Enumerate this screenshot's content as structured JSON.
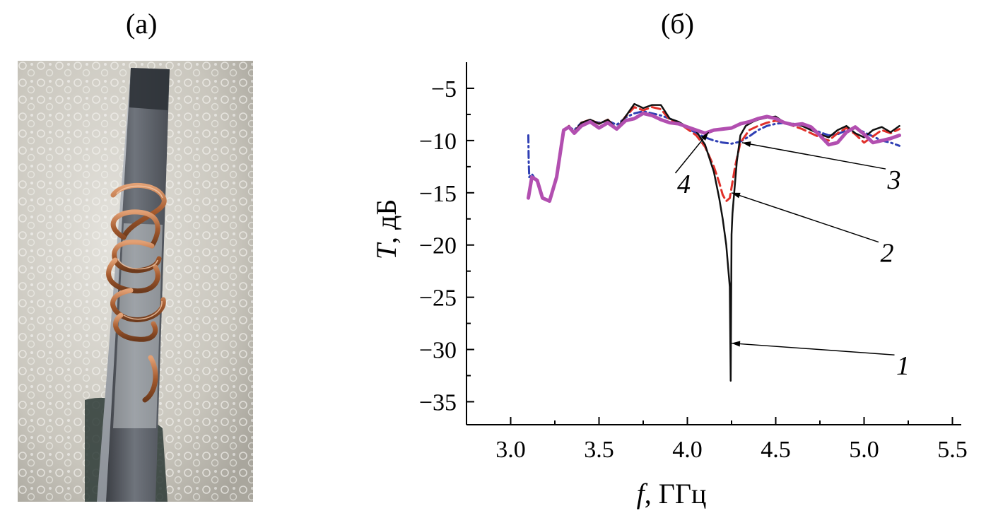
{
  "figure": {
    "panel_a_label": "(а)",
    "panel_b_label": "(б)",
    "photo_subject": "ferrite bar with copper coil photograph"
  },
  "colors": {
    "curve1": "#111111",
    "curve2": "#e0302a",
    "curve3": "#2f3fb4",
    "curve4": "#b24fb0"
  },
  "chart_data": {
    "type": "line",
    "title": "",
    "xlabel_italic": "f",
    "xlabel_rest": ", ГГц",
    "ylabel_italic": "T",
    "ylabel_rest": ", дБ",
    "xlim": [
      2.75,
      5.55
    ],
    "ylim": [
      -37.2,
      -2.5
    ],
    "xticks": [
      3.0,
      3.5,
      4.0,
      4.5,
      5.0,
      5.5
    ],
    "xtick_labels": [
      "3.0",
      "3.5",
      "4.0",
      "4.5",
      "5.0",
      "5.5"
    ],
    "yticks": [
      -5,
      -10,
      -15,
      -20,
      -25,
      -30,
      -35
    ],
    "ytick_labels": [
      "−5",
      "−10",
      "−15",
      "−20",
      "−25",
      "−30",
      "−35"
    ],
    "series": [
      {
        "name": "1",
        "style": "solid",
        "x": [
          3.1,
          3.12,
          3.15,
          3.18,
          3.22,
          3.26,
          3.3,
          3.33,
          3.36,
          3.4,
          3.45,
          3.5,
          3.55,
          3.6,
          3.65,
          3.7,
          3.75,
          3.8,
          3.85,
          3.9,
          3.95,
          4.0,
          4.05,
          4.1,
          4.15,
          4.18,
          4.2,
          4.22,
          4.23,
          4.24,
          4.245,
          4.25,
          4.255,
          4.26,
          4.28,
          4.3,
          4.33,
          4.37,
          4.4,
          4.45,
          4.5,
          4.55,
          4.6,
          4.65,
          4.7,
          4.75,
          4.8,
          4.85,
          4.9,
          4.95,
          5.0,
          5.05,
          5.1,
          5.15,
          5.2
        ],
        "y": [
          -15.5,
          -13.5,
          -13.8,
          -15.5,
          -15.8,
          -13.5,
          -9.0,
          -8.6,
          -9.2,
          -8.3,
          -8.0,
          -8.4,
          -8.0,
          -8.9,
          -7.7,
          -6.5,
          -6.9,
          -6.6,
          -6.6,
          -7.9,
          -8.2,
          -8.7,
          -9.1,
          -10.4,
          -13.0,
          -15.5,
          -17.5,
          -20.0,
          -22.0,
          -24.0,
          -33.0,
          -19.0,
          -17.0,
          -16.0,
          -12.0,
          -9.5,
          -8.6,
          -8.2,
          -8.0,
          -7.8,
          -7.7,
          -8.3,
          -8.4,
          -8.6,
          -9.0,
          -9.4,
          -9.7,
          -9.0,
          -8.6,
          -9.3,
          -9.7,
          -9.0,
          -8.7,
          -9.2,
          -8.6
        ]
      },
      {
        "name": "2",
        "style": "dashed",
        "x": [
          3.1,
          3.12,
          3.15,
          3.18,
          3.22,
          3.26,
          3.3,
          3.33,
          3.36,
          3.4,
          3.45,
          3.5,
          3.55,
          3.6,
          3.65,
          3.7,
          3.75,
          3.8,
          3.85,
          3.9,
          3.95,
          4.0,
          4.05,
          4.1,
          4.15,
          4.18,
          4.2,
          4.22,
          4.24,
          4.25,
          4.27,
          4.3,
          4.35,
          4.4,
          4.45,
          4.5,
          4.55,
          4.6,
          4.65,
          4.7,
          4.75,
          4.8,
          4.85,
          4.9,
          4.95,
          5.0,
          5.05,
          5.1,
          5.15,
          5.2
        ],
        "y": [
          -15.5,
          -13.5,
          -13.8,
          -15.5,
          -15.8,
          -13.5,
          -9.0,
          -8.6,
          -9.2,
          -8.3,
          -8.0,
          -8.4,
          -8.0,
          -8.9,
          -7.7,
          -6.8,
          -7.1,
          -6.8,
          -7.0,
          -8.0,
          -8.3,
          -8.9,
          -9.5,
          -10.6,
          -12.5,
          -14.0,
          -15.2,
          -15.8,
          -15.5,
          -14.5,
          -12.5,
          -10.2,
          -9.0,
          -8.6,
          -8.3,
          -8.1,
          -8.3,
          -8.6,
          -8.9,
          -9.3,
          -9.7,
          -10.0,
          -9.3,
          -8.8,
          -9.4,
          -10.2,
          -9.6,
          -9.0,
          -9.3,
          -8.9
        ]
      },
      {
        "name": "3",
        "style": "dashdot",
        "x": [
          3.1,
          3.102,
          3.105,
          3.12,
          3.15,
          3.18,
          3.22,
          3.26,
          3.3,
          3.33,
          3.36,
          3.4,
          3.45,
          3.5,
          3.55,
          3.6,
          3.65,
          3.7,
          3.75,
          3.8,
          3.85,
          3.9,
          3.95,
          4.0,
          4.05,
          4.1,
          4.15,
          4.2,
          4.25,
          4.3,
          4.35,
          4.4,
          4.45,
          4.5,
          4.55,
          4.6,
          4.65,
          4.7,
          4.75,
          4.8,
          4.85,
          4.9,
          4.95,
          5.0,
          5.05,
          5.1,
          5.15,
          5.2
        ],
        "y": [
          -9.5,
          -12.0,
          -13.5,
          -13.2,
          -14.0,
          -15.5,
          -15.8,
          -13.5,
          -9.0,
          -8.7,
          -9.0,
          -8.3,
          -8.1,
          -8.3,
          -8.1,
          -8.5,
          -7.8,
          -7.4,
          -7.2,
          -7.4,
          -7.6,
          -7.9,
          -8.3,
          -8.8,
          -9.3,
          -9.7,
          -10.0,
          -10.2,
          -10.3,
          -10.1,
          -9.6,
          -9.0,
          -8.6,
          -8.4,
          -8.3,
          -8.4,
          -8.6,
          -8.9,
          -9.2,
          -9.5,
          -9.4,
          -9.0,
          -8.8,
          -9.2,
          -9.6,
          -10.0,
          -10.2,
          -10.5
        ]
      },
      {
        "name": "4",
        "style": "solid-thick",
        "x": [
          3.1,
          3.12,
          3.15,
          3.18,
          3.22,
          3.26,
          3.3,
          3.33,
          3.36,
          3.4,
          3.45,
          3.5,
          3.55,
          3.6,
          3.65,
          3.7,
          3.75,
          3.8,
          3.85,
          3.9,
          3.95,
          4.0,
          4.05,
          4.1,
          4.15,
          4.2,
          4.25,
          4.3,
          4.35,
          4.4,
          4.45,
          4.5,
          4.55,
          4.6,
          4.65,
          4.7,
          4.75,
          4.8,
          4.85,
          4.9,
          4.95,
          5.0,
          5.05,
          5.1,
          5.15,
          5.2
        ],
        "y": [
          -15.5,
          -13.5,
          -13.8,
          -15.5,
          -15.8,
          -13.5,
          -9.0,
          -8.7,
          -9.3,
          -8.6,
          -8.2,
          -8.8,
          -8.3,
          -8.9,
          -8.1,
          -7.9,
          -7.4,
          -7.6,
          -8.0,
          -8.3,
          -8.4,
          -8.7,
          -9.0,
          -9.3,
          -9.0,
          -8.9,
          -8.8,
          -8.4,
          -8.2,
          -7.9,
          -7.7,
          -7.9,
          -8.3,
          -8.5,
          -8.4,
          -8.7,
          -9.5,
          -10.4,
          -10.2,
          -9.2,
          -8.7,
          -9.4,
          -10.2,
          -10.0,
          -9.8,
          -9.5
        ]
      }
    ],
    "annotations": [
      {
        "text": "1",
        "tx": 5.22,
        "ty": -31.6,
        "ax": 4.25,
        "ay": -29.4
      },
      {
        "text": "2",
        "tx": 5.13,
        "ty": -20.8,
        "ax": 4.25,
        "ay": -15.0
      },
      {
        "text": "3",
        "tx": 5.17,
        "ty": -13.8,
        "ax": 4.31,
        "ay": -10.2
      },
      {
        "text": "4",
        "tx": 3.98,
        "ty": -14.2,
        "ax": 4.12,
        "ay": -9.2
      }
    ]
  }
}
